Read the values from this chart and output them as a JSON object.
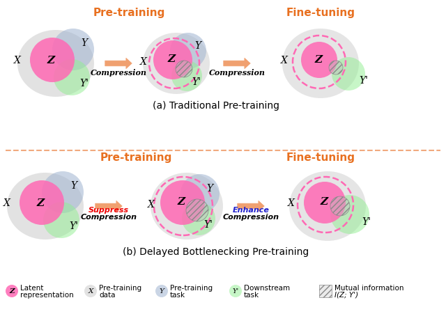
{
  "title_a": "(a) Traditional Pre-training",
  "title_b": "(b) Delayed Bottlenecking Pre-training",
  "pretrain_label": "Pre-training",
  "finetune_label": "Fine-tuning",
  "color_pink": "#FF69B4",
  "color_blue2": "#A0B4D0",
  "color_green": "#90EE90",
  "color_gray": "#C0C0C0",
  "color_dashed": "#FF69B4",
  "color_arrow": "#F0A070",
  "color_orange_text": "#E87020",
  "color_red_text": "#EE0000",
  "color_blue_text": "#2020CC",
  "background": "#FFFFFF"
}
